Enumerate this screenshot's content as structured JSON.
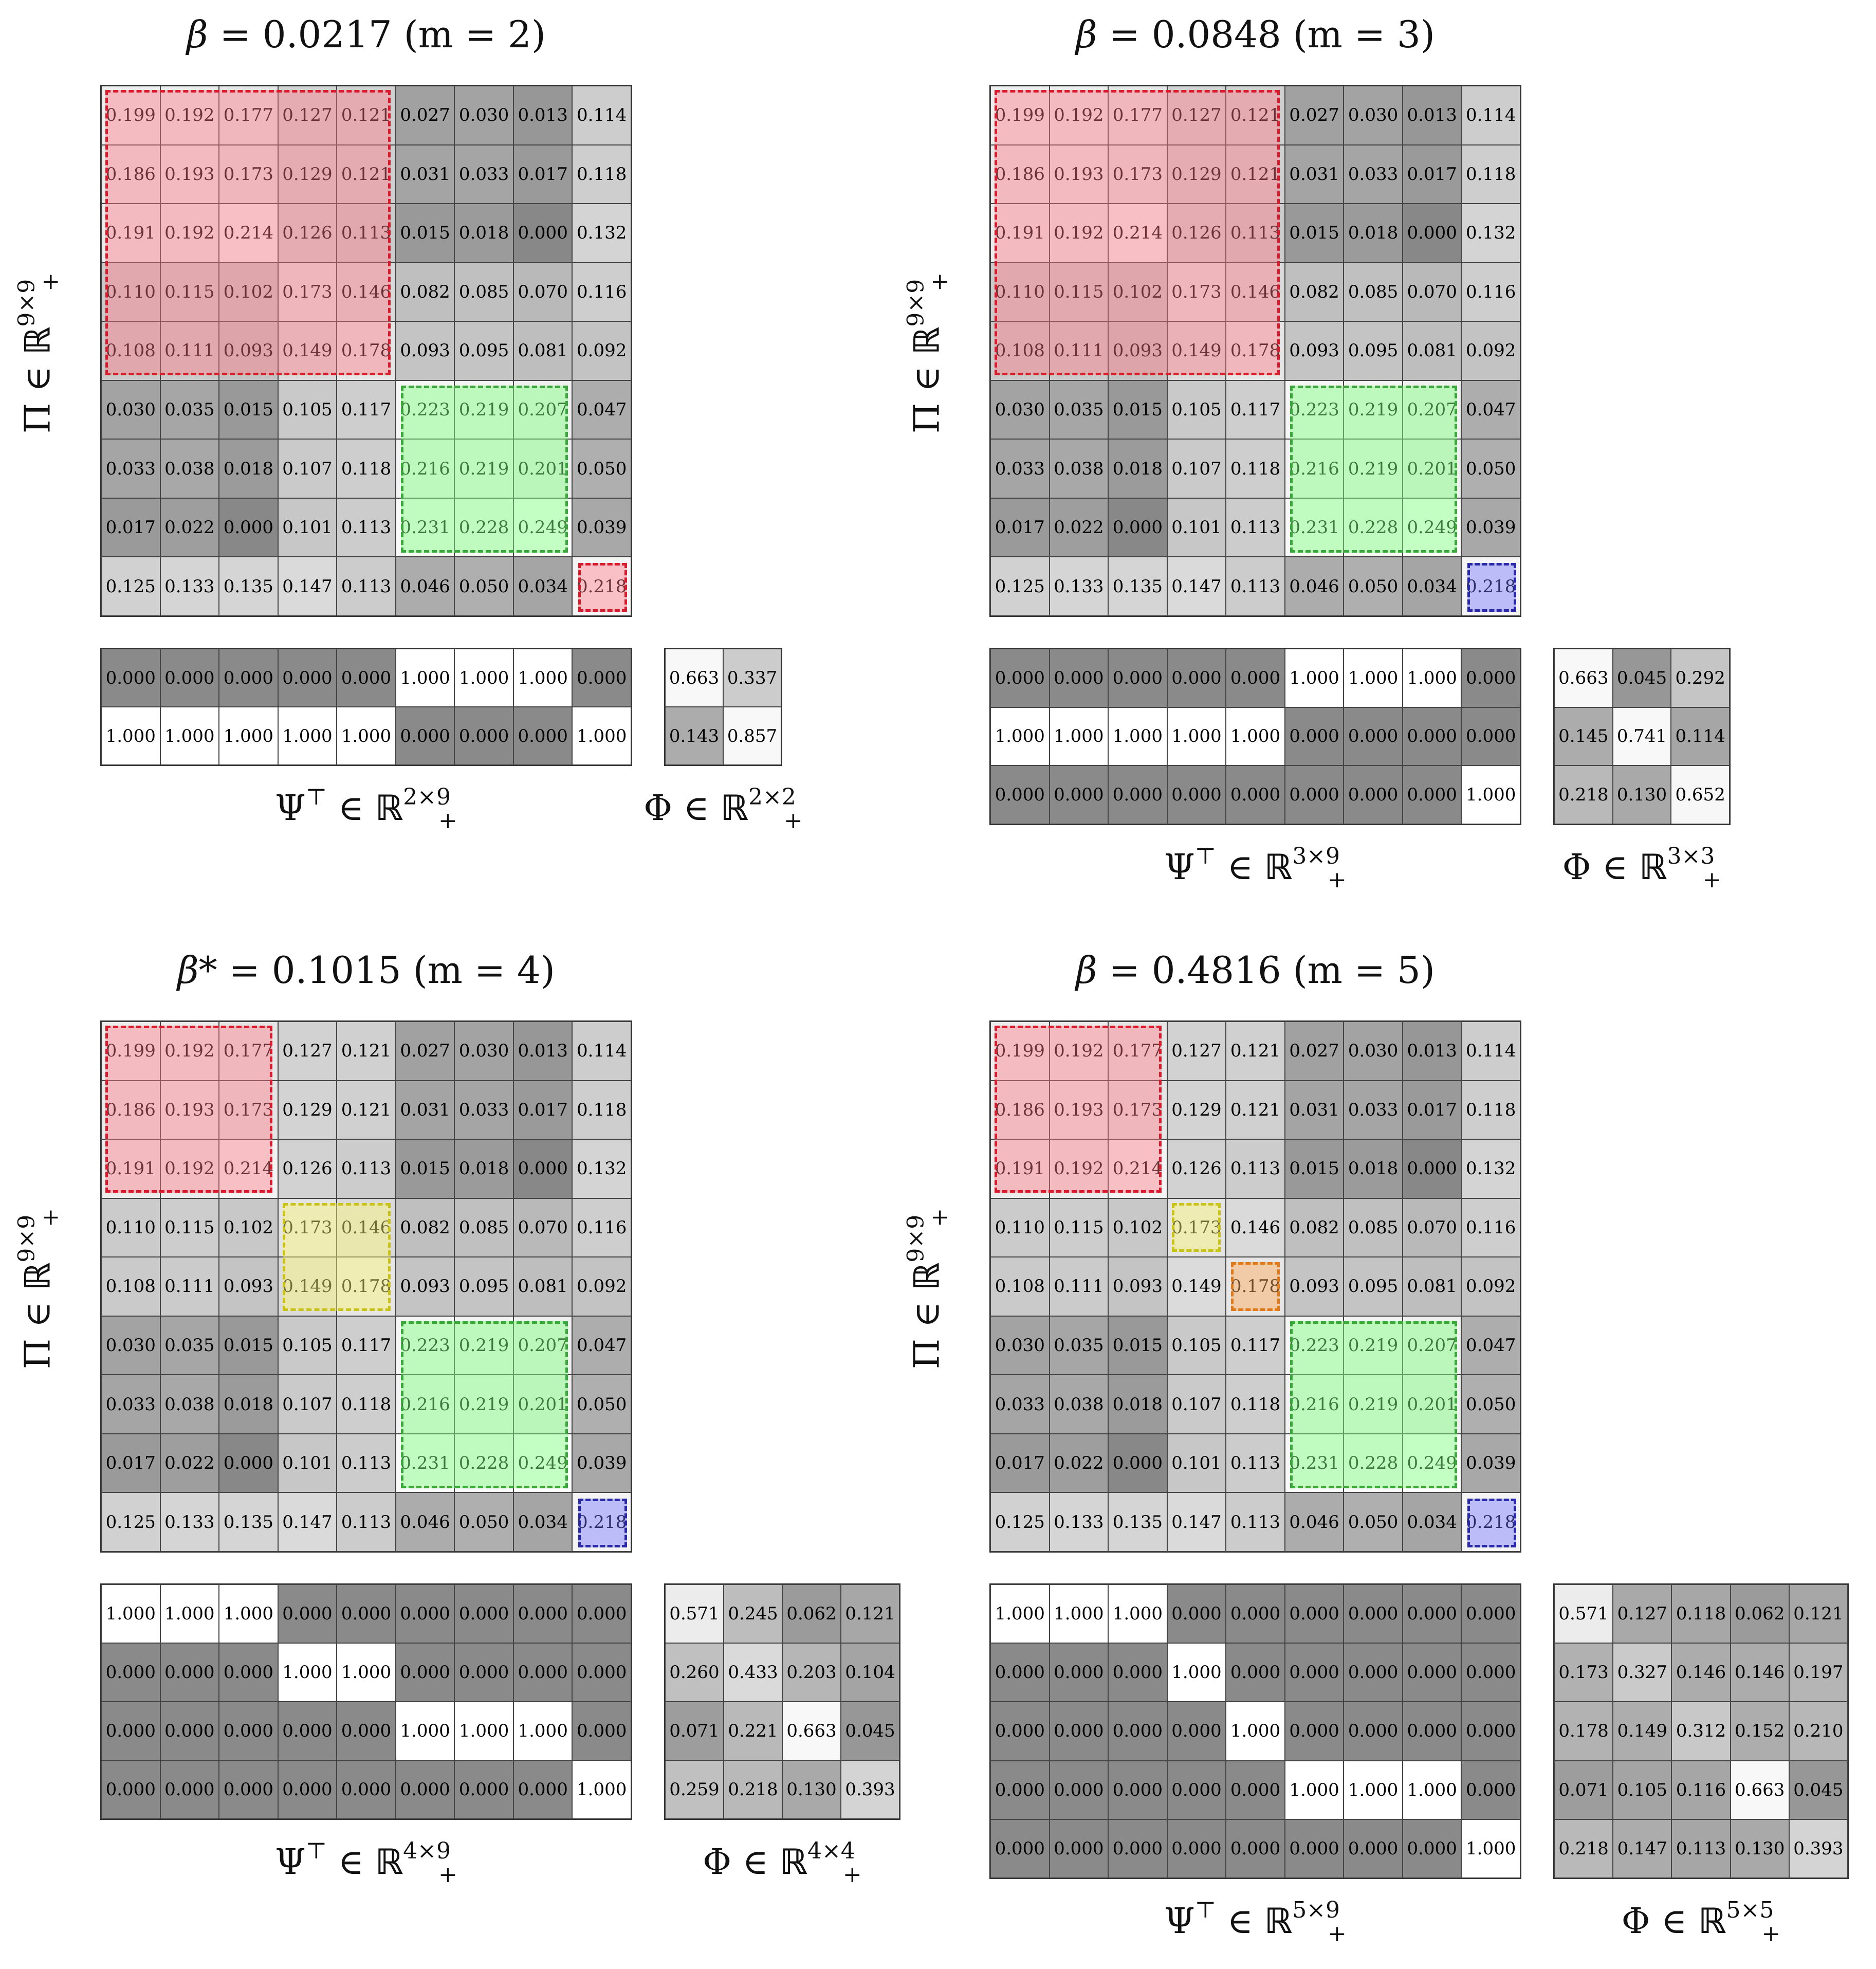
{
  "panels": [
    {
      "title": {
        "symbol": "β",
        "equals": "=",
        "value": "0.0217",
        "m_text": "(m = 2)"
      },
      "ylabel": {
        "symbol": "Π",
        "in": "∈",
        "field": "ℝ",
        "sup": "9×9",
        "sub": "+"
      },
      "psi_label": {
        "symbol": "Ψ",
        "transpose": "⊤",
        "in": "∈",
        "field": "ℝ",
        "sup": "2×9",
        "sub": "+"
      },
      "phi_label": {
        "symbol": "Φ",
        "in": "∈",
        "field": "ℝ",
        "sup": "2×2",
        "sub": "+"
      },
      "pi": [
        [
          "0.199",
          "0.192",
          "0.177",
          "0.127",
          "0.121",
          "0.027",
          "0.030",
          "0.013",
          "0.114"
        ],
        [
          "0.186",
          "0.193",
          "0.173",
          "0.129",
          "0.121",
          "0.031",
          "0.033",
          "0.017",
          "0.118"
        ],
        [
          "0.191",
          "0.192",
          "0.214",
          "0.126",
          "0.113",
          "0.015",
          "0.018",
          "0.000",
          "0.132"
        ],
        [
          "0.110",
          "0.115",
          "0.102",
          "0.173",
          "0.146",
          "0.082",
          "0.085",
          "0.070",
          "0.116"
        ],
        [
          "0.108",
          "0.111",
          "0.093",
          "0.149",
          "0.178",
          "0.093",
          "0.095",
          "0.081",
          "0.092"
        ],
        [
          "0.030",
          "0.035",
          "0.015",
          "0.105",
          "0.117",
          "0.223",
          "0.219",
          "0.207",
          "0.047"
        ],
        [
          "0.033",
          "0.038",
          "0.018",
          "0.107",
          "0.118",
          "0.216",
          "0.219",
          "0.201",
          "0.050"
        ],
        [
          "0.017",
          "0.022",
          "0.000",
          "0.101",
          "0.113",
          "0.231",
          "0.228",
          "0.249",
          "0.039"
        ],
        [
          "0.125",
          "0.133",
          "0.135",
          "0.147",
          "0.113",
          "0.046",
          "0.050",
          "0.034",
          "0.218"
        ]
      ],
      "highlights": [
        {
          "color": "red",
          "rows": [
            0,
            4
          ],
          "cols": [
            0,
            4
          ]
        },
        {
          "color": "green",
          "rows": [
            5,
            7
          ],
          "cols": [
            5,
            7
          ]
        },
        {
          "color": "red",
          "rows": [
            8,
            8
          ],
          "cols": [
            8,
            8
          ]
        }
      ],
      "psi": [
        [
          "0.000",
          "0.000",
          "0.000",
          "0.000",
          "0.000",
          "1.000",
          "1.000",
          "1.000",
          "0.000"
        ],
        [
          "1.000",
          "1.000",
          "1.000",
          "1.000",
          "1.000",
          "0.000",
          "0.000",
          "0.000",
          "1.000"
        ]
      ],
      "phi": [
        [
          "0.663",
          "0.337"
        ],
        [
          "0.143",
          "0.857"
        ]
      ]
    },
    {
      "title": {
        "symbol": "β",
        "equals": "=",
        "value": "0.0848",
        "m_text": "(m = 3)"
      },
      "ylabel": {
        "symbol": "Π",
        "in": "∈",
        "field": "ℝ",
        "sup": "9×9",
        "sub": "+"
      },
      "psi_label": {
        "symbol": "Ψ",
        "transpose": "⊤",
        "in": "∈",
        "field": "ℝ",
        "sup": "3×9",
        "sub": "+"
      },
      "phi_label": {
        "symbol": "Φ",
        "in": "∈",
        "field": "ℝ",
        "sup": "3×3",
        "sub": "+"
      },
      "pi": [
        [
          "0.199",
          "0.192",
          "0.177",
          "0.127",
          "0.121",
          "0.027",
          "0.030",
          "0.013",
          "0.114"
        ],
        [
          "0.186",
          "0.193",
          "0.173",
          "0.129",
          "0.121",
          "0.031",
          "0.033",
          "0.017",
          "0.118"
        ],
        [
          "0.191",
          "0.192",
          "0.214",
          "0.126",
          "0.113",
          "0.015",
          "0.018",
          "0.000",
          "0.132"
        ],
        [
          "0.110",
          "0.115",
          "0.102",
          "0.173",
          "0.146",
          "0.082",
          "0.085",
          "0.070",
          "0.116"
        ],
        [
          "0.108",
          "0.111",
          "0.093",
          "0.149",
          "0.178",
          "0.093",
          "0.095",
          "0.081",
          "0.092"
        ],
        [
          "0.030",
          "0.035",
          "0.015",
          "0.105",
          "0.117",
          "0.223",
          "0.219",
          "0.207",
          "0.047"
        ],
        [
          "0.033",
          "0.038",
          "0.018",
          "0.107",
          "0.118",
          "0.216",
          "0.219",
          "0.201",
          "0.050"
        ],
        [
          "0.017",
          "0.022",
          "0.000",
          "0.101",
          "0.113",
          "0.231",
          "0.228",
          "0.249",
          "0.039"
        ],
        [
          "0.125",
          "0.133",
          "0.135",
          "0.147",
          "0.113",
          "0.046",
          "0.050",
          "0.034",
          "0.218"
        ]
      ],
      "highlights": [
        {
          "color": "red",
          "rows": [
            0,
            4
          ],
          "cols": [
            0,
            4
          ]
        },
        {
          "color": "green",
          "rows": [
            5,
            7
          ],
          "cols": [
            5,
            7
          ]
        },
        {
          "color": "blue",
          "rows": [
            8,
            8
          ],
          "cols": [
            8,
            8
          ]
        }
      ],
      "psi": [
        [
          "0.000",
          "0.000",
          "0.000",
          "0.000",
          "0.000",
          "1.000",
          "1.000",
          "1.000",
          "0.000"
        ],
        [
          "1.000",
          "1.000",
          "1.000",
          "1.000",
          "1.000",
          "0.000",
          "0.000",
          "0.000",
          "0.000"
        ],
        [
          "0.000",
          "0.000",
          "0.000",
          "0.000",
          "0.000",
          "0.000",
          "0.000",
          "0.000",
          "1.000"
        ]
      ],
      "phi": [
        [
          "0.663",
          "0.045",
          "0.292"
        ],
        [
          "0.145",
          "0.741",
          "0.114"
        ],
        [
          "0.218",
          "0.130",
          "0.652"
        ]
      ]
    },
    {
      "title": {
        "symbol": "β*",
        "equals": "=",
        "value": "0.1015",
        "m_text": "(m = 4)"
      },
      "ylabel": {
        "symbol": "Π",
        "in": "∈",
        "field": "ℝ",
        "sup": "9×9",
        "sub": "+"
      },
      "psi_label": {
        "symbol": "Ψ",
        "transpose": "⊤",
        "in": "∈",
        "field": "ℝ",
        "sup": "4×9",
        "sub": "+"
      },
      "phi_label": {
        "symbol": "Φ",
        "in": "∈",
        "field": "ℝ",
        "sup": "4×4",
        "sub": "+"
      },
      "pi": [
        [
          "0.199",
          "0.192",
          "0.177",
          "0.127",
          "0.121",
          "0.027",
          "0.030",
          "0.013",
          "0.114"
        ],
        [
          "0.186",
          "0.193",
          "0.173",
          "0.129",
          "0.121",
          "0.031",
          "0.033",
          "0.017",
          "0.118"
        ],
        [
          "0.191",
          "0.192",
          "0.214",
          "0.126",
          "0.113",
          "0.015",
          "0.018",
          "0.000",
          "0.132"
        ],
        [
          "0.110",
          "0.115",
          "0.102",
          "0.173",
          "0.146",
          "0.082",
          "0.085",
          "0.070",
          "0.116"
        ],
        [
          "0.108",
          "0.111",
          "0.093",
          "0.149",
          "0.178",
          "0.093",
          "0.095",
          "0.081",
          "0.092"
        ],
        [
          "0.030",
          "0.035",
          "0.015",
          "0.105",
          "0.117",
          "0.223",
          "0.219",
          "0.207",
          "0.047"
        ],
        [
          "0.033",
          "0.038",
          "0.018",
          "0.107",
          "0.118",
          "0.216",
          "0.219",
          "0.201",
          "0.050"
        ],
        [
          "0.017",
          "0.022",
          "0.000",
          "0.101",
          "0.113",
          "0.231",
          "0.228",
          "0.249",
          "0.039"
        ],
        [
          "0.125",
          "0.133",
          "0.135",
          "0.147",
          "0.113",
          "0.046",
          "0.050",
          "0.034",
          "0.218"
        ]
      ],
      "highlights": [
        {
          "color": "red",
          "rows": [
            0,
            2
          ],
          "cols": [
            0,
            2
          ]
        },
        {
          "color": "yellow",
          "rows": [
            3,
            4
          ],
          "cols": [
            3,
            4
          ]
        },
        {
          "color": "green",
          "rows": [
            5,
            7
          ],
          "cols": [
            5,
            7
          ]
        },
        {
          "color": "blue",
          "rows": [
            8,
            8
          ],
          "cols": [
            8,
            8
          ]
        }
      ],
      "psi": [
        [
          "1.000",
          "1.000",
          "1.000",
          "0.000",
          "0.000",
          "0.000",
          "0.000",
          "0.000",
          "0.000"
        ],
        [
          "0.000",
          "0.000",
          "0.000",
          "1.000",
          "1.000",
          "0.000",
          "0.000",
          "0.000",
          "0.000"
        ],
        [
          "0.000",
          "0.000",
          "0.000",
          "0.000",
          "0.000",
          "1.000",
          "1.000",
          "1.000",
          "0.000"
        ],
        [
          "0.000",
          "0.000",
          "0.000",
          "0.000",
          "0.000",
          "0.000",
          "0.000",
          "0.000",
          "1.000"
        ]
      ],
      "phi": [
        [
          "0.571",
          "0.245",
          "0.062",
          "0.121"
        ],
        [
          "0.260",
          "0.433",
          "0.203",
          "0.104"
        ],
        [
          "0.071",
          "0.221",
          "0.663",
          "0.045"
        ],
        [
          "0.259",
          "0.218",
          "0.130",
          "0.393"
        ]
      ]
    },
    {
      "title": {
        "symbol": "β",
        "equals": "=",
        "value": "0.4816",
        "m_text": "(m = 5)"
      },
      "ylabel": {
        "symbol": "Π",
        "in": "∈",
        "field": "ℝ",
        "sup": "9×9",
        "sub": "+"
      },
      "psi_label": {
        "symbol": "Ψ",
        "transpose": "⊤",
        "in": "∈",
        "field": "ℝ",
        "sup": "5×9",
        "sub": "+"
      },
      "phi_label": {
        "symbol": "Φ",
        "in": "∈",
        "field": "ℝ",
        "sup": "5×5",
        "sub": "+"
      },
      "pi": [
        [
          "0.199",
          "0.192",
          "0.177",
          "0.127",
          "0.121",
          "0.027",
          "0.030",
          "0.013",
          "0.114"
        ],
        [
          "0.186",
          "0.193",
          "0.173",
          "0.129",
          "0.121",
          "0.031",
          "0.033",
          "0.017",
          "0.118"
        ],
        [
          "0.191",
          "0.192",
          "0.214",
          "0.126",
          "0.113",
          "0.015",
          "0.018",
          "0.000",
          "0.132"
        ],
        [
          "0.110",
          "0.115",
          "0.102",
          "0.173",
          "0.146",
          "0.082",
          "0.085",
          "0.070",
          "0.116"
        ],
        [
          "0.108",
          "0.111",
          "0.093",
          "0.149",
          "0.178",
          "0.093",
          "0.095",
          "0.081",
          "0.092"
        ],
        [
          "0.030",
          "0.035",
          "0.015",
          "0.105",
          "0.117",
          "0.223",
          "0.219",
          "0.207",
          "0.047"
        ],
        [
          "0.033",
          "0.038",
          "0.018",
          "0.107",
          "0.118",
          "0.216",
          "0.219",
          "0.201",
          "0.050"
        ],
        [
          "0.017",
          "0.022",
          "0.000",
          "0.101",
          "0.113",
          "0.231",
          "0.228",
          "0.249",
          "0.039"
        ],
        [
          "0.125",
          "0.133",
          "0.135",
          "0.147",
          "0.113",
          "0.046",
          "0.050",
          "0.034",
          "0.218"
        ]
      ],
      "highlights": [
        {
          "color": "red",
          "rows": [
            0,
            2
          ],
          "cols": [
            0,
            2
          ]
        },
        {
          "color": "yellow",
          "rows": [
            3,
            3
          ],
          "cols": [
            3,
            3
          ]
        },
        {
          "color": "orange",
          "rows": [
            4,
            4
          ],
          "cols": [
            4,
            4
          ]
        },
        {
          "color": "green",
          "rows": [
            5,
            7
          ],
          "cols": [
            5,
            7
          ]
        },
        {
          "color": "blue",
          "rows": [
            8,
            8
          ],
          "cols": [
            8,
            8
          ]
        }
      ],
      "psi": [
        [
          "1.000",
          "1.000",
          "1.000",
          "0.000",
          "0.000",
          "0.000",
          "0.000",
          "0.000",
          "0.000"
        ],
        [
          "0.000",
          "0.000",
          "0.000",
          "1.000",
          "0.000",
          "0.000",
          "0.000",
          "0.000",
          "0.000"
        ],
        [
          "0.000",
          "0.000",
          "0.000",
          "0.000",
          "1.000",
          "0.000",
          "0.000",
          "0.000",
          "0.000"
        ],
        [
          "0.000",
          "0.000",
          "0.000",
          "0.000",
          "0.000",
          "1.000",
          "1.000",
          "1.000",
          "0.000"
        ],
        [
          "0.000",
          "0.000",
          "0.000",
          "0.000",
          "0.000",
          "0.000",
          "0.000",
          "0.000",
          "1.000"
        ]
      ],
      "phi": [
        [
          "0.571",
          "0.127",
          "0.118",
          "0.062",
          "0.121"
        ],
        [
          "0.173",
          "0.327",
          "0.146",
          "0.146",
          "0.197"
        ],
        [
          "0.178",
          "0.149",
          "0.312",
          "0.152",
          "0.210"
        ],
        [
          "0.071",
          "0.105",
          "0.116",
          "0.663",
          "0.045"
        ],
        [
          "0.218",
          "0.147",
          "0.113",
          "0.130",
          "0.393"
        ]
      ]
    }
  ]
}
